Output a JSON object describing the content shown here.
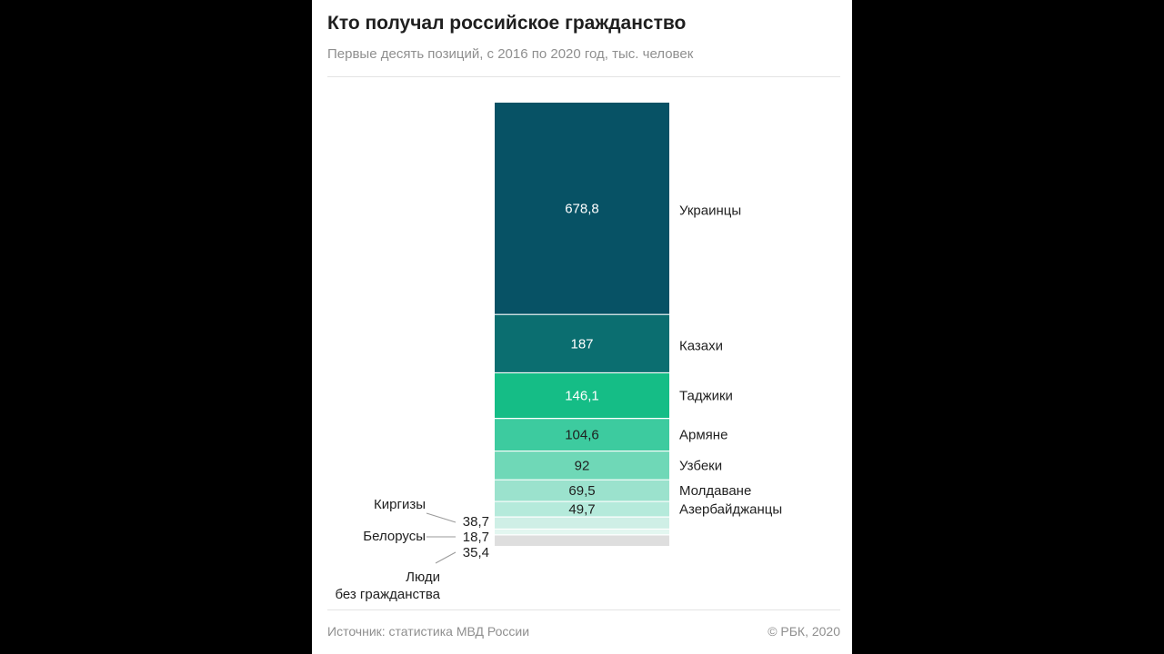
{
  "title": "Кто получал российское гражданство",
  "subtitle": "Первые десять позиций, с 2016 по 2020 год, тыс. человек",
  "source": "Источник: статистика МВД России",
  "copyright": "© РБК, 2020",
  "chart_data": {
    "type": "bar",
    "stacked": true,
    "title": "Кто получал российское гражданство",
    "subtitle": "Первые десять позиций, с 2016 по 2020 год, тыс. человек",
    "unit": "тыс. человек",
    "segments": [
      {
        "name": "Украинцы",
        "value": 678.8,
        "label": "678,8",
        "color": "#075265"
      },
      {
        "name": "Казахи",
        "value": 187,
        "label": "187",
        "color": "#0b6e70"
      },
      {
        "name": "Таджики",
        "value": 146.1,
        "label": "146,1",
        "color": "#15bd86"
      },
      {
        "name": "Армяне",
        "value": 104.6,
        "label": "104,6",
        "color": "#3dcb9f"
      },
      {
        "name": "Узбеки",
        "value": 92,
        "label": "92",
        "color": "#6fd8b7"
      },
      {
        "name": "Молдаване",
        "value": 69.5,
        "label": "69,5",
        "color": "#9be2cd"
      },
      {
        "name": "Азербайджанцы",
        "value": 49.7,
        "label": "49,7",
        "color": "#b5eadb"
      },
      {
        "name": "Киргизы",
        "value": 38.7,
        "label": "38,7",
        "color": "#cfefe6"
      },
      {
        "name": "Белорусы",
        "value": 18.7,
        "label": "18,7",
        "color": "#e3f6f0"
      },
      {
        "name": "Люди без гражданства",
        "value": 35.4,
        "label": "35,4",
        "color": "#dedede"
      }
    ],
    "left_labels": {
      "Киргизы": "Киргизы",
      "Белорусы": "Белорусы",
      "Люди без гражданства": [
        "Люди",
        "без гражданства"
      ]
    }
  }
}
